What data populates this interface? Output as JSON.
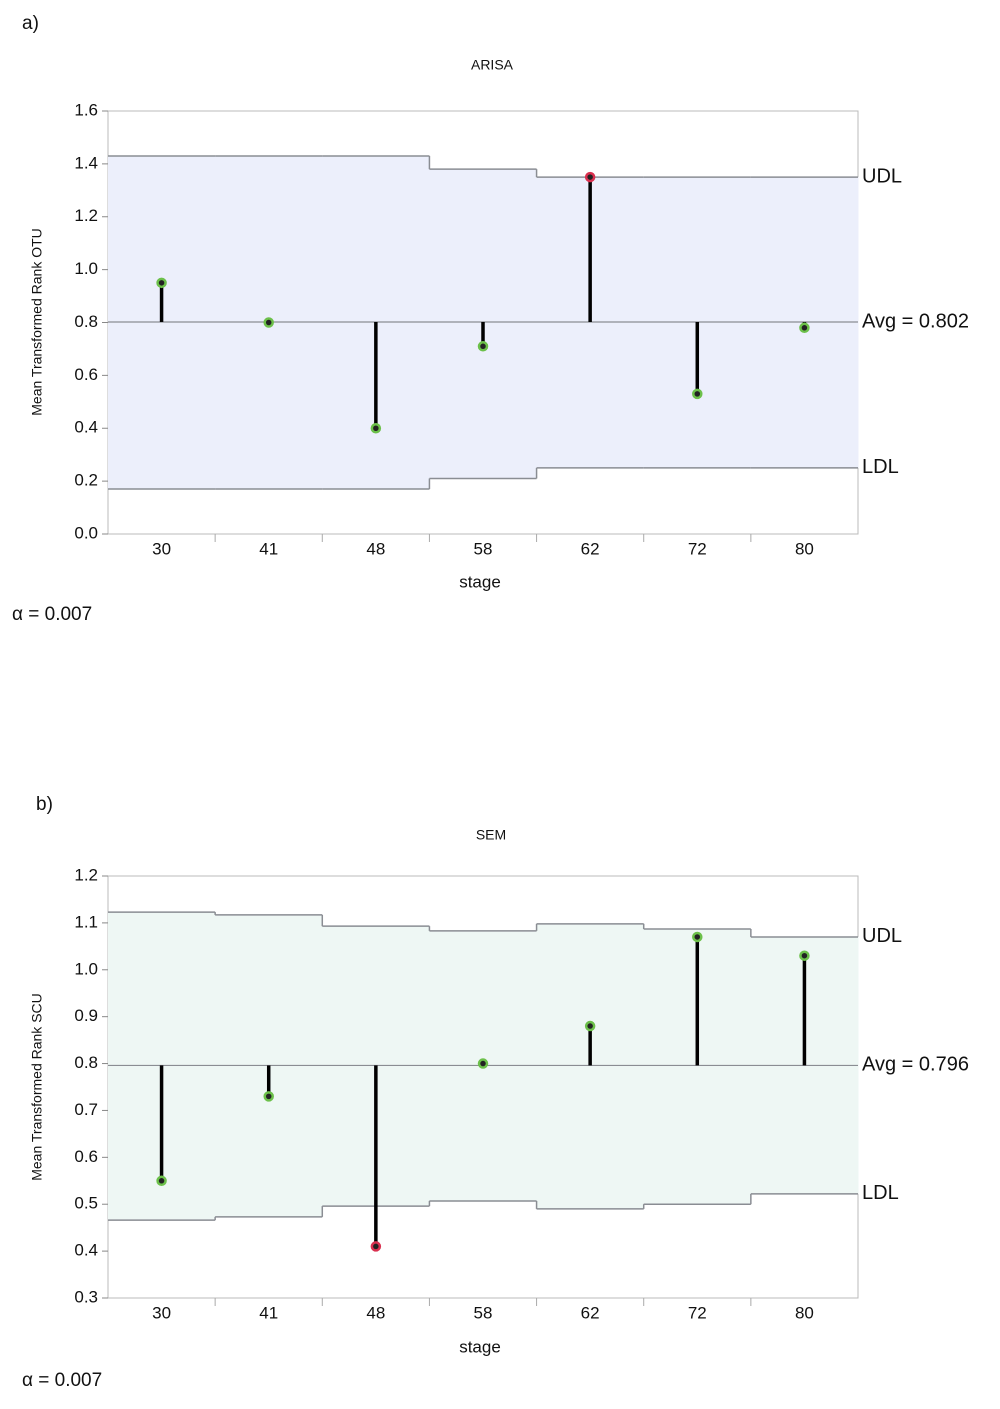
{
  "chart_data": [
    {
      "type": "anom",
      "panel_label": "a)",
      "title": "ARISA",
      "xlabel": "stage",
      "ylabel": "Mean Transformed Rank OTU",
      "categories": [
        "30",
        "41",
        "48",
        "58",
        "62",
        "72",
        "80"
      ],
      "values": [
        0.95,
        0.8,
        0.4,
        0.71,
        1.35,
        0.53,
        0.78
      ],
      "point_colors": [
        "#6cc04a",
        "#6cc04a",
        "#6cc04a",
        "#6cc04a",
        "#d9304f",
        "#6cc04a",
        "#6cc04a"
      ],
      "udl": [
        1.43,
        1.43,
        1.43,
        1.38,
        1.35,
        1.35,
        1.35
      ],
      "ldl": [
        0.17,
        0.17,
        0.17,
        0.21,
        0.25,
        0.25,
        0.25
      ],
      "avg": {
        "value": 0.802,
        "label": "Avg = 0.802"
      },
      "udl_label": "UDL",
      "ldl_label": "LDL",
      "alpha_label": "α = 0.007",
      "band_color": "#eceffb",
      "ylim": [
        0,
        1.6
      ],
      "yticks": [
        {
          "value": 0,
          "label": "0.0"
        },
        0.2,
        0.4,
        0.6,
        0.8,
        {
          "value": 1,
          "label": "1.0"
        },
        1.2,
        1.4,
        1.6
      ]
    },
    {
      "type": "anom",
      "panel_label": "b)",
      "title": "SEM",
      "xlabel": "stage",
      "ylabel": "Mean Transformed Rank SCU",
      "categories": [
        "30",
        "41",
        "48",
        "58",
        "62",
        "72",
        "80"
      ],
      "values": [
        0.55,
        0.73,
        0.41,
        0.8,
        0.88,
        1.07,
        1.03
      ],
      "point_colors": [
        "#6cc04a",
        "#6cc04a",
        "#d9304f",
        "#6cc04a",
        "#6cc04a",
        "#6cc04a",
        "#6cc04a"
      ],
      "udl": [
        1.123,
        1.117,
        1.093,
        1.083,
        1.098,
        1.087,
        1.07
      ],
      "ldl": [
        0.466,
        0.473,
        0.496,
        0.507,
        0.49,
        0.5,
        0.522
      ],
      "avg": {
        "value": 0.796,
        "label": "Avg = 0.796"
      },
      "udl_label": "UDL",
      "ldl_label": "LDL",
      "alpha_label": "α = 0.007",
      "band_color": "#eef7f4",
      "ylim": [
        0.3,
        1.2
      ],
      "yticks": [
        0.3,
        0.4,
        0.5,
        0.6,
        0.7,
        0.8,
        0.9,
        {
          "value": 1,
          "label": "1.0"
        },
        1.1,
        1.2
      ]
    }
  ]
}
